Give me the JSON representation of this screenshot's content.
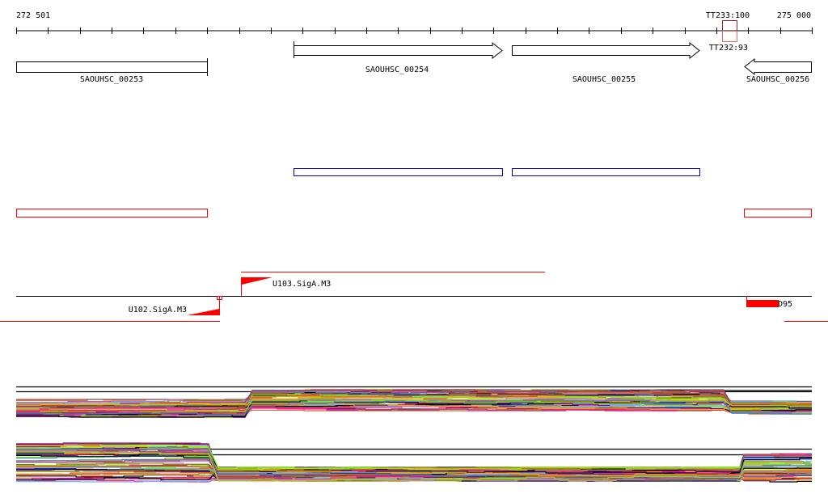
{
  "ruler": {
    "start_label": "272 501",
    "end_label": "275 000",
    "tick_count": 26
  },
  "terminators": {
    "upper_label": "TT233:100",
    "lower_label": "TT232:93",
    "upper_color": "#a02020",
    "lower_color": "#e07060"
  },
  "genes": [
    {
      "name": "SAOUHSC_00253",
      "strand": "none"
    },
    {
      "name": "SAOUHSC_00254",
      "strand": "+"
    },
    {
      "name": "SAOUHSC_00255",
      "strand": "+"
    },
    {
      "name": "SAOUHSC_00256",
      "strand": "-"
    }
  ],
  "promoters": [
    {
      "name": "U103.SigA.M3",
      "strand": "+"
    },
    {
      "name": "U102.SigA.M3",
      "strand": "-"
    },
    {
      "name": "D95",
      "strand": "+"
    }
  ],
  "colors": {
    "operon_plus": "#0000cc",
    "operon_minus": "#ff0000",
    "promoter": "#ff0000",
    "expression_palette": [
      "#e0602a",
      "#8b8b00",
      "#ff1493",
      "#6db6ff",
      "#7cfc00",
      "#8b5a5a",
      "#000040",
      "#c080c0",
      "#b03060",
      "#ffa500",
      "#4682b4",
      "#9acd32",
      "#d2691e",
      "#800080",
      "#c0a060",
      "#000000"
    ]
  }
}
